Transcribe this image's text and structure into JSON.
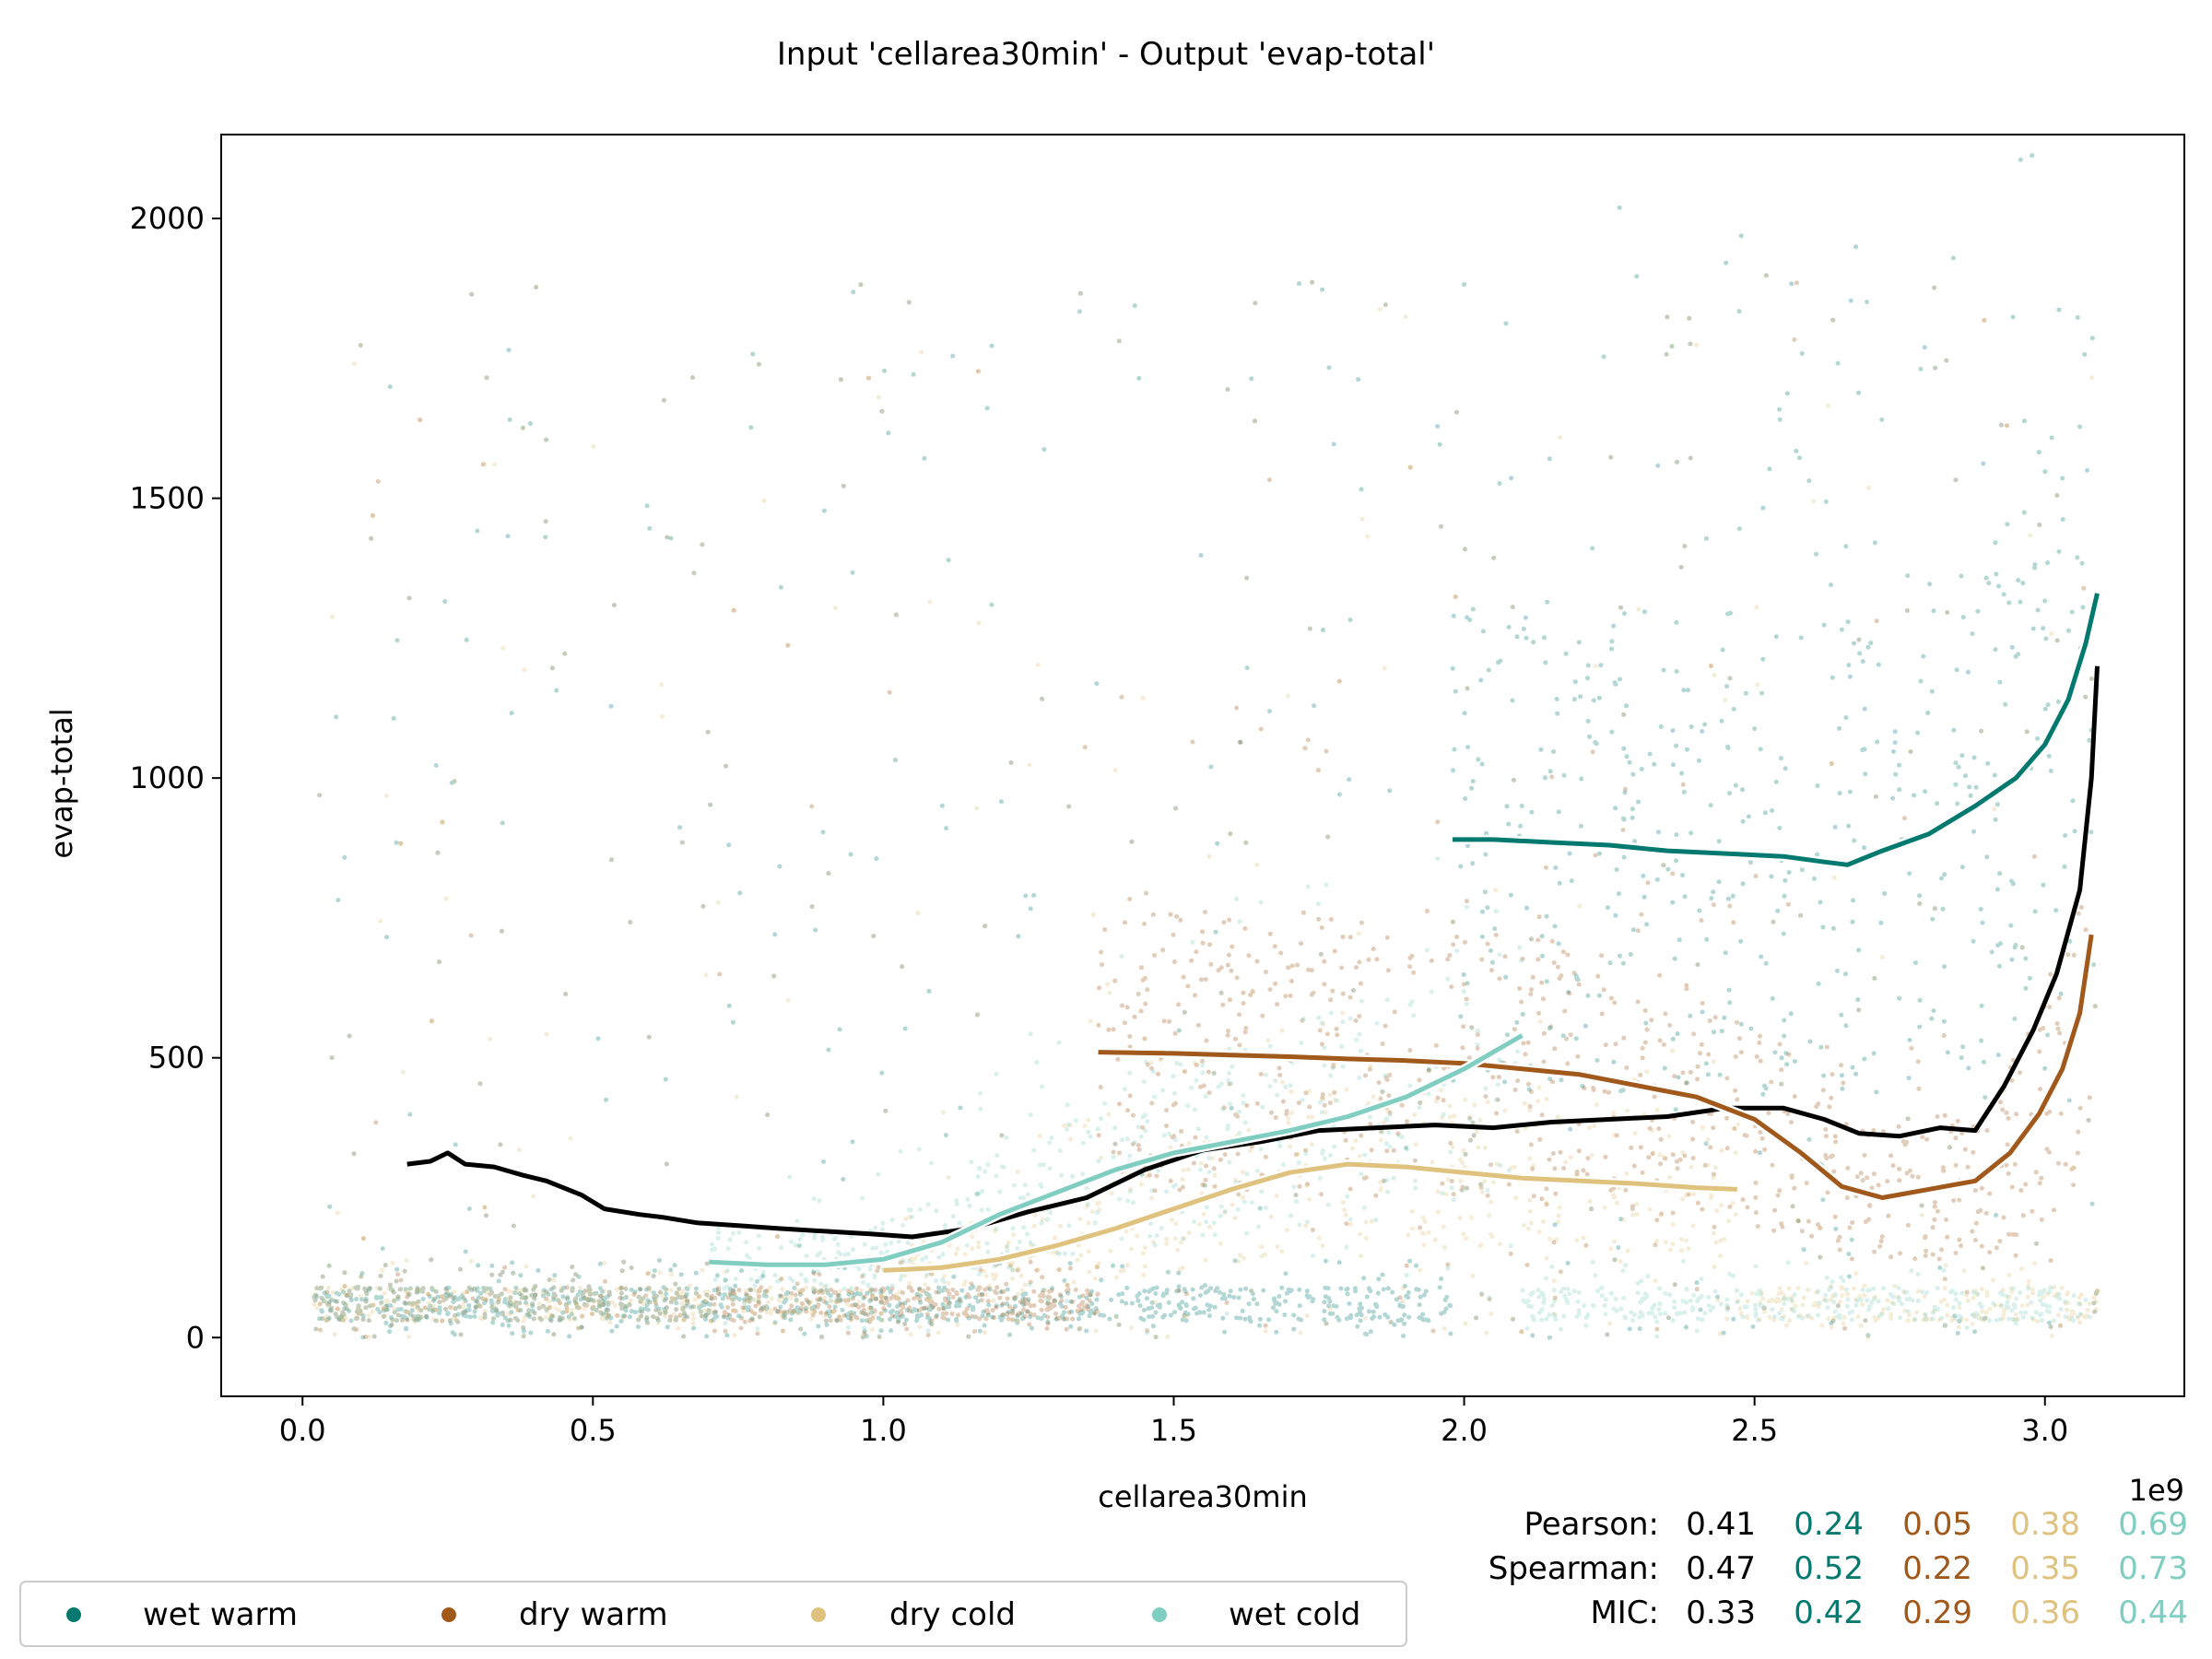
{
  "chart_data": {
    "type": "scatter",
    "title": "Input 'cellarea30min' - Output 'evap-total'",
    "xlabel": "cellarea30min",
    "ylabel": "evap-total",
    "x_offset_label": "1e9",
    "xlim": [
      -0.14,
      3.24
    ],
    "ylim": [
      -105,
      2150
    ],
    "x_ticks": [
      0.0,
      0.5,
      1.0,
      1.5,
      2.0,
      2.5,
      3.0
    ],
    "x_tick_labels": [
      "0.0",
      "0.5",
      "1.0",
      "1.5",
      "2.0",
      "2.5",
      "3.0"
    ],
    "y_ticks": [
      0,
      500,
      1000,
      1500,
      2000
    ],
    "y_tick_labels": [
      "0",
      "500",
      "1000",
      "1500",
      "2000"
    ],
    "legend": {
      "position": "bottom-left",
      "entries": [
        {
          "label": "wet warm",
          "color": "#01796f"
        },
        {
          "label": "dry warm",
          "color": "#a0581b"
        },
        {
          "label": "dry cold",
          "color": "#dfc27d"
        },
        {
          "label": "wet cold",
          "color": "#80cdc1"
        }
      ]
    },
    "series": [
      {
        "name": "",
        "color": "#000000",
        "x": [
          0.18,
          0.22,
          0.25,
          0.28,
          0.33,
          0.38,
          0.42,
          0.48,
          0.52,
          0.58,
          0.62,
          0.68,
          0.75,
          0.82,
          0.9,
          0.98,
          1.05,
          1.15,
          1.25,
          1.35,
          1.45,
          1.55,
          1.65,
          1.75,
          1.85,
          1.95,
          2.05,
          2.15,
          2.25,
          2.35,
          2.45,
          2.55,
          2.62,
          2.68,
          2.75,
          2.82,
          2.88,
          2.93,
          2.98,
          3.02,
          3.06,
          3.08,
          3.09
        ],
        "y": [
          310,
          315,
          330,
          310,
          305,
          290,
          280,
          255,
          230,
          220,
          215,
          205,
          200,
          195,
          190,
          185,
          180,
          195,
          225,
          250,
          300,
          335,
          350,
          370,
          375,
          380,
          375,
          385,
          390,
          395,
          410,
          410,
          390,
          365,
          360,
          375,
          370,
          450,
          550,
          650,
          800,
          1000,
          1200
        ]
      },
      {
        "name": "",
        "color": "#01796f",
        "x": [
          1.98,
          2.05,
          2.15,
          2.25,
          2.35,
          2.45,
          2.55,
          2.62,
          2.66,
          2.72,
          2.8,
          2.88,
          2.95,
          3.0,
          3.04,
          3.07,
          3.09
        ],
        "y": [
          890,
          890,
          885,
          880,
          870,
          865,
          860,
          850,
          845,
          870,
          900,
          950,
          1000,
          1060,
          1140,
          1240,
          1330
        ]
      },
      {
        "name": "",
        "color": "#a0581b",
        "x": [
          1.37,
          1.5,
          1.6,
          1.7,
          1.8,
          1.9,
          2.0,
          2.1,
          2.2,
          2.3,
          2.4,
          2.5,
          2.58,
          2.65,
          2.72,
          2.8,
          2.88,
          2.94,
          2.99,
          3.03,
          3.06,
          3.08
        ],
        "y": [
          510,
          508,
          505,
          502,
          498,
          495,
          490,
          480,
          470,
          450,
          430,
          390,
          330,
          270,
          250,
          265,
          280,
          330,
          400,
          480,
          580,
          720
        ]
      },
      {
        "name": "",
        "color": "#dfc27d",
        "x": [
          1.0,
          1.1,
          1.2,
          1.3,
          1.4,
          1.5,
          1.6,
          1.7,
          1.8,
          1.9,
          2.0,
          2.1,
          2.2,
          2.3,
          2.4,
          2.47
        ],
        "y": [
          120,
          125,
          140,
          165,
          195,
          230,
          265,
          295,
          310,
          305,
          295,
          285,
          280,
          275,
          268,
          265
        ]
      },
      {
        "name": "",
        "color": "#80cdc1",
        "x": [
          0.7,
          0.8,
          0.9,
          1.0,
          1.1,
          1.2,
          1.3,
          1.4,
          1.5,
          1.6,
          1.7,
          1.8,
          1.9,
          2.0,
          2.05,
          2.1
        ],
        "y": [
          135,
          130,
          130,
          140,
          170,
          220,
          260,
          300,
          330,
          350,
          370,
          395,
          430,
          480,
          510,
          540
        ]
      }
    ],
    "stats_rows": [
      {
        "label": "Pearson:",
        "values": [
          "0.41",
          "0.24",
          "0.05",
          "0.38",
          "0.69"
        ]
      },
      {
        "label": "Spearman:",
        "values": [
          "0.47",
          "0.52",
          "0.22",
          "0.35",
          "0.73"
        ]
      },
      {
        "label": "MIC:",
        "values": [
          "0.33",
          "0.42",
          "0.29",
          "0.36",
          "0.44"
        ]
      }
    ],
    "stats_colors": [
      "#000000",
      "#01796f",
      "#a0581b",
      "#dfc27d",
      "#80cdc1"
    ]
  }
}
